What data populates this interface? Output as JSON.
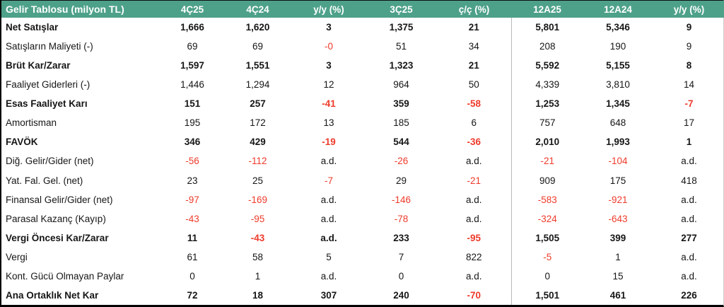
{
  "chart_data": {
    "type": "table",
    "title": "Gelir Tablosu (milyon TL)",
    "columns": [
      "4Ç25",
      "4Ç24",
      "y/y (%)",
      "3Ç25",
      "ç/ç (%)",
      "12A25",
      "12A24",
      "y/y (%)"
    ],
    "rows": [
      {
        "label": "Net Satışlar",
        "bold": true,
        "values": [
          "1,666",
          "1,620",
          "3",
          "1,375",
          "21",
          "5,801",
          "5,346",
          "9"
        ]
      },
      {
        "label": "Satışların Maliyeti (-)",
        "bold": false,
        "values": [
          "69",
          "69",
          "-0",
          "51",
          "34",
          "208",
          "190",
          "9"
        ]
      },
      {
        "label": "Brüt Kar/Zarar",
        "bold": true,
        "values": [
          "1,597",
          "1,551",
          "3",
          "1,323",
          "21",
          "5,592",
          "5,155",
          "8"
        ]
      },
      {
        "label": "Faaliyet Giderleri (-)",
        "bold": false,
        "values": [
          "1,446",
          "1,294",
          "12",
          "964",
          "50",
          "4,339",
          "3,810",
          "14"
        ]
      },
      {
        "label": "Esas Faaliyet Karı",
        "bold": true,
        "values": [
          "151",
          "257",
          "-41",
          "359",
          "-58",
          "1,253",
          "1,345",
          "-7"
        ]
      },
      {
        "label": "Amortisman",
        "bold": false,
        "values": [
          "195",
          "172",
          "13",
          "185",
          "6",
          "757",
          "648",
          "17"
        ]
      },
      {
        "label": "FAVÖK",
        "bold": true,
        "values": [
          "346",
          "429",
          "-19",
          "544",
          "-36",
          "2,010",
          "1,993",
          "1"
        ]
      },
      {
        "label": "Diğ. Gelir/Gider (net)",
        "bold": false,
        "values": [
          "-56",
          "-112",
          "a.d.",
          "-26",
          "a.d.",
          "-21",
          "-104",
          "a.d."
        ]
      },
      {
        "label": "Yat. Fal. Gel. (net)",
        "bold": false,
        "values": [
          "23",
          "25",
          "-7",
          "29",
          "-21",
          "909",
          "175",
          "418"
        ]
      },
      {
        "label": "Finansal Gelir/Gider (net)",
        "bold": false,
        "values": [
          "-97",
          "-169",
          "a.d.",
          "-146",
          "a.d.",
          "-583",
          "-921",
          "a.d."
        ]
      },
      {
        "label": "Parasal Kazanç (Kayıp)",
        "bold": false,
        "values": [
          "-43",
          "-95",
          "a.d.",
          "-78",
          "a.d.",
          "-324",
          "-643",
          "a.d."
        ]
      },
      {
        "label": "Vergi Öncesi Kar/Zarar",
        "bold": true,
        "values": [
          "11",
          "-43",
          "a.d.",
          "233",
          "-95",
          "1,505",
          "399",
          "277"
        ]
      },
      {
        "label": "Vergi",
        "bold": false,
        "values": [
          "61",
          "58",
          "5",
          "7",
          "822",
          "-5",
          "1",
          "a.d."
        ]
      },
      {
        "label": "Kont. Gücü Olmayan Paylar",
        "bold": false,
        "values": [
          "0",
          "1",
          "a.d.",
          "0",
          "a.d.",
          "0",
          "15",
          "a.d."
        ]
      },
      {
        "label": "Ana Ortaklık Net Kar",
        "bold": true,
        "values": [
          "72",
          "18",
          "307",
          "240",
          "-70",
          "1,501",
          "461",
          "226"
        ]
      }
    ]
  },
  "style": {
    "header_bg": "#4EA189",
    "header_fg": "#FFFFFF",
    "negative": "#EE3B2B",
    "text": "#161616",
    "divider": "#B8B8B8"
  }
}
